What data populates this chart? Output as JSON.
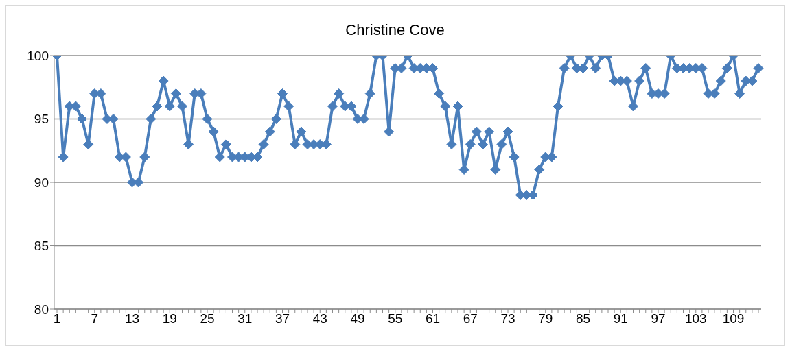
{
  "chart_data": {
    "type": "line",
    "title": "Christine Cove",
    "categories": [
      "1",
      null,
      null,
      null,
      null,
      null,
      "7",
      null,
      null,
      null,
      null,
      null,
      "13",
      null,
      null,
      null,
      null,
      null,
      "19",
      null,
      null,
      null,
      null,
      null,
      "25",
      null,
      null,
      null,
      null,
      null,
      "31",
      null,
      null,
      null,
      null,
      null,
      "37",
      null,
      null,
      null,
      null,
      null,
      "43",
      null,
      null,
      null,
      null,
      null,
      "49",
      null,
      null,
      null,
      null,
      null,
      "55",
      null,
      null,
      null,
      null,
      null,
      "61",
      null,
      null,
      null,
      null,
      null,
      "67",
      null,
      null,
      null,
      null,
      null,
      "73",
      null,
      null,
      null,
      null,
      null,
      "79",
      null,
      null,
      null,
      null,
      null,
      "85",
      null,
      null,
      null,
      null,
      null,
      "91",
      null,
      null,
      null,
      null,
      null,
      "97",
      null,
      null,
      null,
      null,
      null,
      "103",
      null,
      null,
      null,
      null,
      null,
      "109",
      null,
      null,
      null,
      null
    ],
    "series": [
      {
        "color": "#4a7ebb",
        "values": [
          100,
          92,
          96,
          96,
          95,
          93,
          97,
          97,
          95,
          95,
          92,
          92,
          90,
          90,
          92,
          95,
          96,
          98,
          96,
          97,
          96,
          93,
          97,
          97,
          95,
          94,
          92,
          93,
          92,
          92,
          92,
          92,
          92,
          93,
          94,
          95,
          97,
          96,
          93,
          94,
          93,
          93,
          93,
          93,
          96,
          97,
          96,
          96,
          95,
          95,
          97,
          100,
          100,
          94,
          99,
          99,
          100,
          99,
          99,
          99,
          99,
          97,
          96,
          93,
          96,
          91,
          93,
          94,
          93,
          94,
          91,
          93,
          94,
          92,
          89,
          89,
          89,
          91,
          92,
          92,
          96,
          99,
          100,
          99,
          99,
          100,
          99,
          100,
          100,
          98,
          98,
          98,
          96,
          98,
          99,
          97,
          97,
          97,
          100,
          99,
          99,
          99,
          99,
          99,
          97,
          97,
          98,
          99,
          100,
          97,
          98,
          98,
          99
        ]
      }
    ],
    "ylim": [
      80,
      100
    ],
    "yticks": [
      80,
      85,
      90,
      95,
      100
    ],
    "grid": "y",
    "marker": "diamond",
    "line_style": "solid",
    "legend": false
  }
}
